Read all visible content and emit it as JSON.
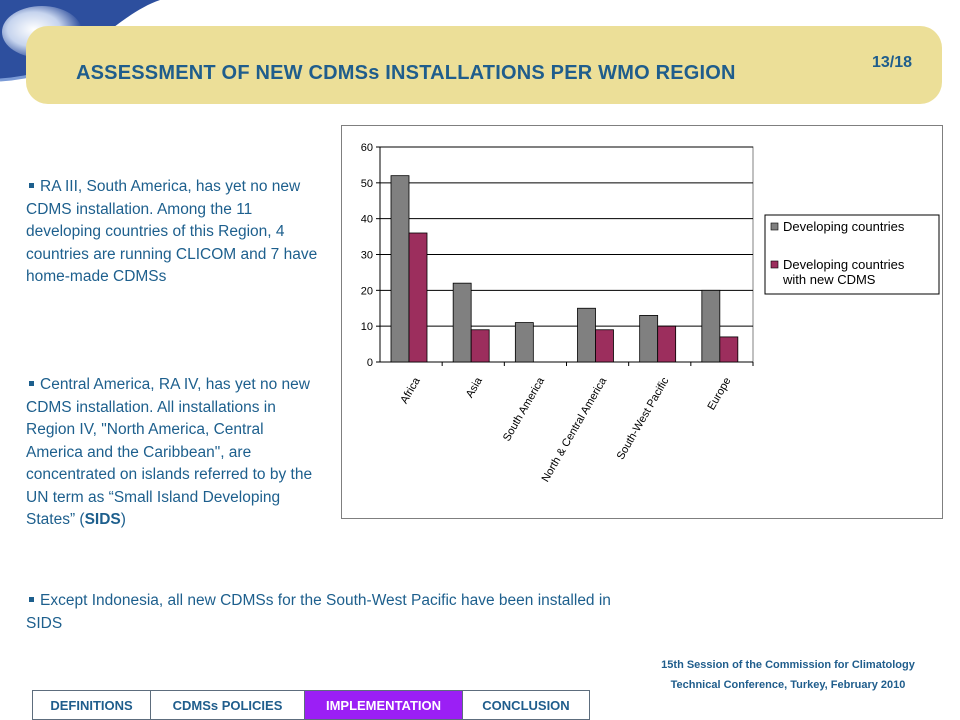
{
  "slide": {
    "title": "ASSESSMENT OF NEW CDMSs INSTALLATIONS PER WMO REGION",
    "page": "13/18"
  },
  "bullets": [
    {
      "text": "RA III, South America, has yet no new CDMS installation. Among the 11 developing countries of this Region, 4 countries are running CLICOM and 7 have home-made CDMSs"
    },
    {
      "text_before": "Central America, RA IV, has yet no new CDMS installation. All installations in Region IV, \"North America, Central America and the Caribbean\", are concentrated on islands referred to by the UN term as “Small Island Developing States” (",
      "bold": "SIDS",
      "text_after": ")"
    },
    {
      "text": "Except Indonesia, all new CDMSs for the South-West Pacific have been installed in SIDS"
    }
  ],
  "footer": {
    "line1": "15th Session of the Commission for Climatology",
    "line2": "Technical Conference, Turkey, February 2010"
  },
  "nav": {
    "tabs": [
      "DEFINITIONS",
      "CDMSs POLICIES",
      "IMPLEMENTATION",
      "CONCLUSION"
    ],
    "active_index": 2,
    "active_color": "#9b1ff5"
  },
  "colors": {
    "title": "#1f5d8c",
    "title_band": "#ecdf98",
    "text": "#1d5f8d"
  },
  "chart_data": {
    "type": "bar",
    "categories": [
      "Africa",
      "Asia",
      "South America",
      "North & Central America",
      "South-West Pacific",
      "Europe"
    ],
    "series": [
      {
        "name": "Developing countries",
        "values": [
          52,
          22,
          11,
          15,
          13,
          20
        ],
        "color": "#808080"
      },
      {
        "name": "Developing countries with new CDMS",
        "values": [
          36,
          9,
          0,
          9,
          10,
          7
        ],
        "color": "#9c2e5d"
      }
    ],
    "ylim": [
      0,
      60
    ],
    "yticks": [
      0,
      10,
      20,
      30,
      40,
      50,
      60
    ],
    "grid": true,
    "legend_position": "right",
    "title": "",
    "xlabel": "",
    "ylabel": ""
  }
}
